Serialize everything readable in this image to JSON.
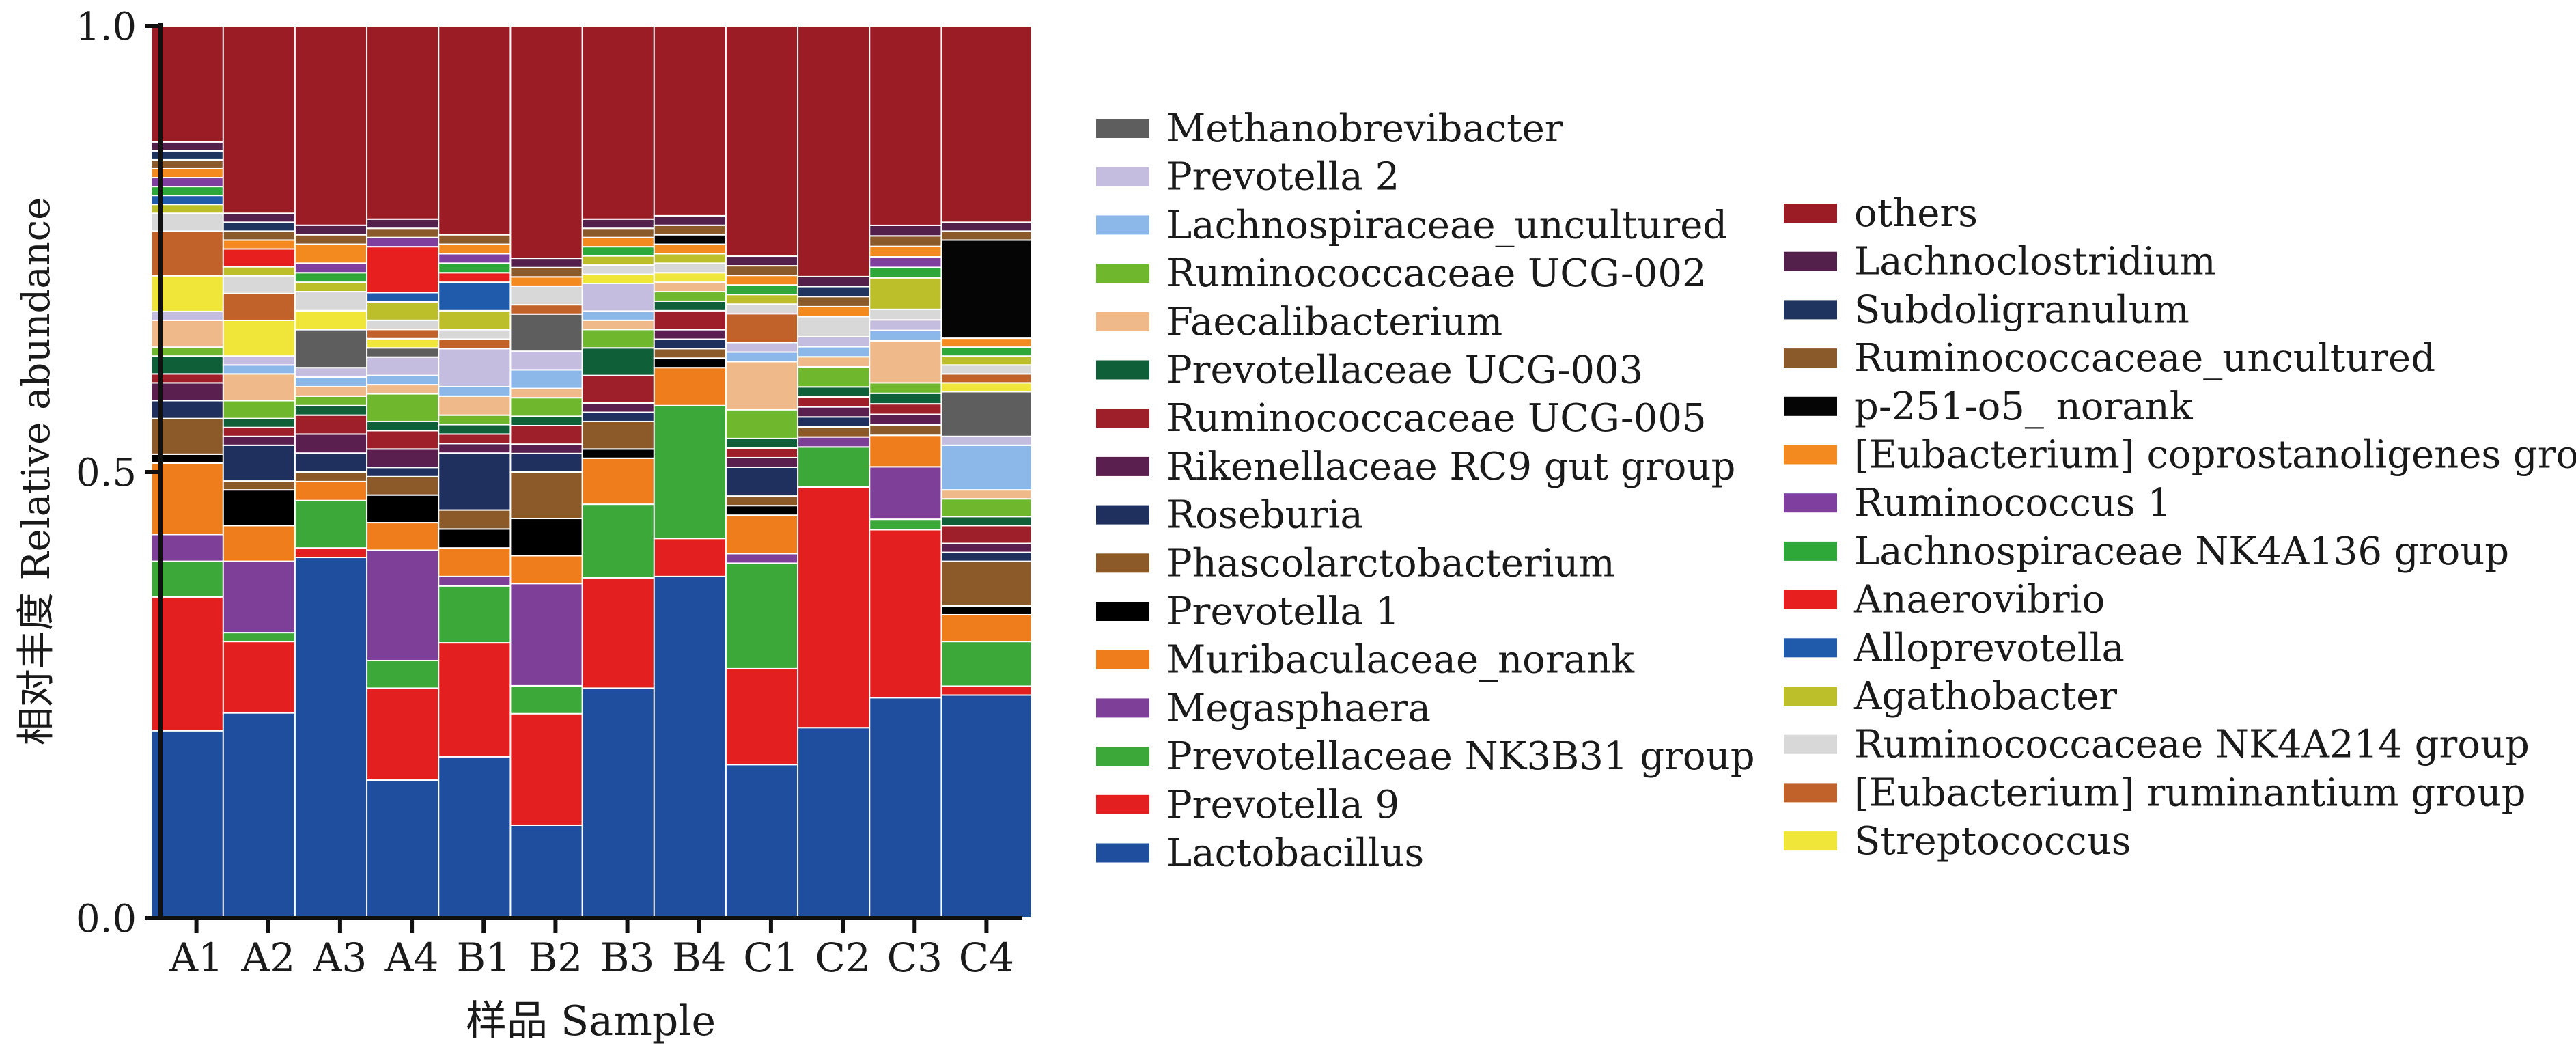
{
  "chart_data": {
    "type": "bar",
    "stacked": true,
    "title": "",
    "xlabel": "样品  Sample",
    "ylabel": "相对丰度  Relative abundance",
    "ylim": [
      0,
      1.0
    ],
    "y_ticks": [
      "0.0",
      "0.5",
      "1.0"
    ],
    "grid": false,
    "legend_position": "right",
    "categories": [
      "A1",
      "A2",
      "A3",
      "A4",
      "B1",
      "B2",
      "B3",
      "B4",
      "C1",
      "C2",
      "C3",
      "C4"
    ],
    "series": [
      {
        "name": "Lactobacillus",
        "color": "#1f4e9e",
        "values": [
          0.21,
          0.23,
          0.38,
          0.15,
          0.17,
          0.1,
          0.25,
          0.36,
          0.16,
          0.19,
          0.21,
          0.25
        ]
      },
      {
        "name": "Prevotella 9",
        "color": "#e31f1f",
        "values": [
          0.15,
          0.08,
          0.01,
          0.1,
          0.12,
          0.12,
          0.12,
          0.04,
          0.1,
          0.24,
          0.16,
          0.01
        ]
      },
      {
        "name": "Prevotellaceae NK3B31 group",
        "color": "#3ca83a",
        "values": [
          0.04,
          0.01,
          0.05,
          0.03,
          0.06,
          0.03,
          0.08,
          0.14,
          0.11,
          0.04,
          0.01,
          0.05
        ]
      },
      {
        "name": "Megasphaera",
        "color": "#7d3f98",
        "values": [
          0.03,
          0.08,
          0.0,
          0.12,
          0.01,
          0.11,
          0.0,
          0.0,
          0.01,
          0.01,
          0.05,
          0.0
        ]
      },
      {
        "name": "Muribaculaceae_norank",
        "color": "#f07d1b",
        "values": [
          0.08,
          0.04,
          0.02,
          0.03,
          0.03,
          0.03,
          0.05,
          0.04,
          0.04,
          0.0,
          0.03,
          0.03
        ]
      },
      {
        "name": "Prevotella 1",
        "color": "#000000",
        "values": [
          0.01,
          0.04,
          0.0,
          0.03,
          0.02,
          0.04,
          0.01,
          0.01,
          0.01,
          0.0,
          0.0,
          0.01
        ]
      },
      {
        "name": "Phascolarctobacterium",
        "color": "#8c5a28",
        "values": [
          0.04,
          0.01,
          0.01,
          0.02,
          0.02,
          0.05,
          0.03,
          0.01,
          0.01,
          0.01,
          0.01,
          0.05
        ]
      },
      {
        "name": "Roseburia",
        "color": "#1f2f5e",
        "values": [
          0.02,
          0.04,
          0.02,
          0.01,
          0.06,
          0.02,
          0.01,
          0.01,
          0.03,
          0.01,
          0.0,
          0.01
        ]
      },
      {
        "name": "Rikenellaceae RC9 gut group",
        "color": "#5a1f4e",
        "values": [
          0.02,
          0.01,
          0.02,
          0.02,
          0.01,
          0.01,
          0.01,
          0.01,
          0.01,
          0.01,
          0.01,
          0.01
        ]
      },
      {
        "name": "Ruminococcaceae UCG-005",
        "color": "#9e1f2a",
        "values": [
          0.01,
          0.01,
          0.02,
          0.02,
          0.01,
          0.02,
          0.03,
          0.02,
          0.01,
          0.01,
          0.01,
          0.02
        ]
      },
      {
        "name": "Prevotellaceae UCG-003",
        "color": "#0f6038",
        "values": [
          0.02,
          0.01,
          0.01,
          0.01,
          0.01,
          0.01,
          0.03,
          0.01,
          0.01,
          0.01,
          0.01,
          0.01
        ]
      },
      {
        "name": "Ruminococcaceae UCG-002",
        "color": "#6fb82e",
        "values": [
          0.01,
          0.02,
          0.01,
          0.03,
          0.01,
          0.02,
          0.02,
          0.01,
          0.03,
          0.02,
          0.01,
          0.02
        ]
      },
      {
        "name": "Faecalibacterium",
        "color": "#f0b98a",
        "values": [
          0.03,
          0.03,
          0.01,
          0.01,
          0.02,
          0.01,
          0.01,
          0.01,
          0.05,
          0.01,
          0.04,
          0.01
        ]
      },
      {
        "name": "Lachnospiraceae_uncultured",
        "color": "#8bb8e8",
        "values": [
          0.0,
          0.01,
          0.01,
          0.01,
          0.01,
          0.02,
          0.01,
          0.0,
          0.01,
          0.01,
          0.01,
          0.05
        ]
      },
      {
        "name": "Prevotella 2",
        "color": "#c4bde0",
        "values": [
          0.01,
          0.01,
          0.01,
          0.02,
          0.04,
          0.02,
          0.03,
          0.0,
          0.01,
          0.01,
          0.01,
          0.01
        ]
      },
      {
        "name": "Methanobrevibacter",
        "color": "#5e5e5e",
        "values": [
          0.0,
          0.0,
          0.04,
          0.01,
          0.0,
          0.04,
          0.0,
          0.0,
          0.0,
          0.0,
          0.0,
          0.05
        ]
      },
      {
        "name": "Streptococcus",
        "color": "#f0e63a",
        "values": [
          0.04,
          0.04,
          0.02,
          0.01,
          0.0,
          0.0,
          0.01,
          0.01,
          0.0,
          0.0,
          0.0,
          0.01
        ]
      },
      {
        "name": "[Eubacterium] ruminantium group",
        "color": "#c0622a",
        "values": [
          0.05,
          0.03,
          0.0,
          0.01,
          0.01,
          0.01,
          0.0,
          0.0,
          0.03,
          0.0,
          0.0,
          0.01
        ]
      },
      {
        "name": "Ruminococcaceae NK4A214 group",
        "color": "#d8d8d8",
        "values": [
          0.02,
          0.02,
          0.02,
          0.01,
          0.01,
          0.02,
          0.01,
          0.01,
          0.01,
          0.02,
          0.01,
          0.01
        ]
      },
      {
        "name": "Agathobacter",
        "color": "#bcbe2a",
        "values": [
          0.01,
          0.01,
          0.01,
          0.02,
          0.02,
          0.0,
          0.01,
          0.01,
          0.01,
          0.0,
          0.03,
          0.01
        ]
      },
      {
        "name": "Alloprevotella",
        "color": "#1f5aab",
        "values": [
          0.01,
          0.0,
          0.0,
          0.01,
          0.03,
          0.0,
          0.0,
          0.0,
          0.0,
          0.0,
          0.0,
          0.0
        ]
      },
      {
        "name": "Anaerovibrio",
        "color": "#e81f1f",
        "values": [
          0.0,
          0.02,
          0.0,
          0.05,
          0.01,
          0.0,
          0.0,
          0.0,
          0.0,
          0.0,
          0.0,
          0.0
        ]
      },
      {
        "name": "Lachnospiraceae NK4A136 group",
        "color": "#2fa83a",
        "values": [
          0.01,
          0.0,
          0.01,
          0.0,
          0.01,
          0.0,
          0.01,
          0.0,
          0.01,
          0.0,
          0.01,
          0.01
        ]
      },
      {
        "name": "Ruminococcus 1",
        "color": "#7f3f9e",
        "values": [
          0.01,
          0.0,
          0.01,
          0.01,
          0.01,
          0.0,
          0.0,
          0.0,
          0.0,
          0.0,
          0.01,
          0.0
        ]
      },
      {
        "name": "[Eubacterium] coprostanoligenes group",
        "color": "#f28a1f",
        "values": [
          0.01,
          0.01,
          0.02,
          0.0,
          0.01,
          0.01,
          0.01,
          0.01,
          0.01,
          0.01,
          0.01,
          0.01
        ]
      },
      {
        "name": "p-251-o5_ norank",
        "color": "#050505",
        "values": [
          0.0,
          0.0,
          0.0,
          0.0,
          0.0,
          0.0,
          0.0,
          0.01,
          0.0,
          0.0,
          0.0,
          0.11
        ]
      },
      {
        "name": "Ruminococcaceae_uncultured",
        "color": "#8a5a2a",
        "values": [
          0.01,
          0.01,
          0.01,
          0.01,
          0.01,
          0.01,
          0.01,
          0.01,
          0.01,
          0.01,
          0.01,
          0.01
        ]
      },
      {
        "name": "Subdoligranulum",
        "color": "#1f3560",
        "values": [
          0.01,
          0.01,
          0.0,
          0.0,
          0.0,
          0.0,
          0.0,
          0.0,
          0.0,
          0.01,
          0.0,
          0.0
        ]
      },
      {
        "name": "Lachnoclostridium",
        "color": "#52204a",
        "values": [
          0.01,
          0.01,
          0.01,
          0.01,
          0.0,
          0.01,
          0.01,
          0.01,
          0.01,
          0.01,
          0.01,
          0.01
        ]
      },
      {
        "name": "others",
        "color": "#9b1c24",
        "values": [
          0.13,
          0.21,
          0.21,
          0.21,
          0.22,
          0.25,
          0.21,
          0.2,
          0.24,
          0.25,
          0.19,
          0.22
        ]
      }
    ],
    "legend_col1": [
      "Methanobrevibacter",
      "Prevotella 2",
      "Lachnospiraceae_uncultured",
      "Ruminococcaceae UCG-002",
      "Faecalibacterium",
      "Prevotellaceae UCG-003",
      "Ruminococcaceae UCG-005",
      "Rikenellaceae RC9 gut group",
      "Roseburia",
      "Phascolarctobacterium",
      "Prevotella 1",
      "Muribaculaceae_norank",
      "Megasphaera",
      "Prevotellaceae NK3B31 group",
      "Prevotella 9",
      "Lactobacillus"
    ],
    "legend_col2": [
      "others",
      "Lachnoclostridium",
      "Subdoligranulum",
      "Ruminococcaceae_uncultured",
      "p-251-o5_ norank",
      "[Eubacterium] coprostanoligenes group",
      "Ruminococcus 1",
      "Lachnospiraceae NK4A136 group",
      "Anaerovibrio",
      "Alloprevotella",
      "Agathobacter",
      "Ruminococcaceae NK4A214 group",
      "[Eubacterium] ruminantium group",
      "Streptococcus"
    ]
  }
}
